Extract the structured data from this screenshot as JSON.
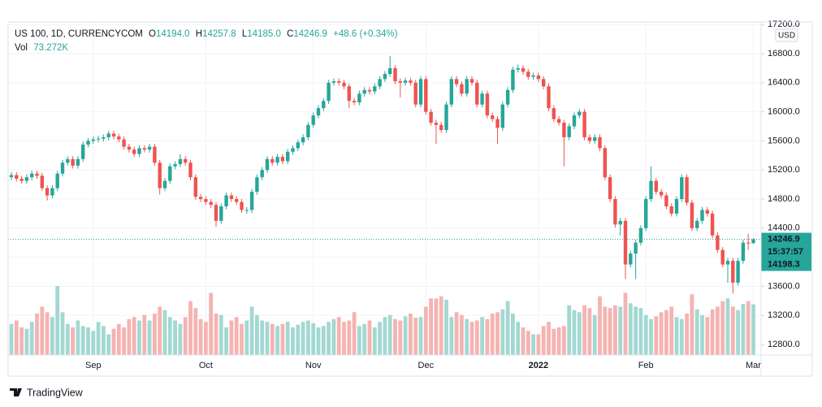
{
  "chart_data": {
    "type": "candlestick",
    "legend": {
      "symbol": "US 100, 1D, CURRENCYCOM",
      "open_key": "O",
      "open": "14194.0",
      "high_key": "H",
      "high": "14257.8",
      "low_key": "L",
      "low": "14185.0",
      "close_key": "C",
      "close": "14246.9",
      "change": "+48.6 (+0.34%)",
      "volume_key": "Vol",
      "volume": "73.272K"
    },
    "currency": "USD",
    "categories": [
      null,
      null,
      null,
      null,
      null,
      null,
      null,
      null,
      null,
      null,
      null,
      null,
      null,
      null,
      null,
      null,
      "Sep",
      null,
      null,
      null,
      null,
      null,
      null,
      null,
      null,
      null,
      null,
      null,
      null,
      null,
      null,
      null,
      null,
      null,
      null,
      null,
      null,
      null,
      "Oct",
      null,
      null,
      null,
      null,
      null,
      null,
      null,
      null,
      null,
      null,
      null,
      null,
      null,
      null,
      null,
      null,
      null,
      null,
      null,
      null,
      "Nov",
      null,
      null,
      null,
      null,
      null,
      null,
      null,
      null,
      null,
      null,
      null,
      null,
      null,
      null,
      null,
      null,
      null,
      null,
      null,
      null,
      null,
      "Dec",
      null,
      null,
      null,
      null,
      null,
      null,
      null,
      null,
      null,
      null,
      null,
      null,
      null,
      null,
      null,
      null,
      null,
      null,
      null,
      null,
      null,
      "2022",
      null,
      null,
      null,
      null,
      null,
      null,
      null,
      null,
      null,
      null,
      null,
      null,
      null,
      null,
      null,
      null,
      null,
      null,
      null,
      null,
      "Feb",
      null,
      null,
      null,
      null,
      null,
      null,
      null,
      null,
      null,
      null,
      null,
      null,
      null,
      null,
      null,
      null,
      null,
      null,
      null,
      null,
      "Mar"
    ],
    "open": [
      15100,
      15130,
      15080,
      15050,
      15100,
      15150,
      15120,
      14950,
      14850,
      14950,
      15150,
      15300,
      15350,
      15260,
      15350,
      15550,
      15600,
      15620,
      15630,
      15650,
      15700,
      15660,
      15620,
      15520,
      15480,
      15420,
      15500,
      15480,
      15520,
      15300,
      14950,
      15050,
      15250,
      15280,
      15350,
      15300,
      15100,
      14830,
      14800,
      14760,
      14720,
      14500,
      14700,
      14850,
      14800,
      14760,
      14650,
      14650,
      14900,
      15100,
      15200,
      15350,
      15300,
      15380,
      15320,
      15450,
      15500,
      15580,
      15650,
      15820,
      15950,
      16050,
      16150,
      16400,
      16420,
      16400,
      16350,
      16150,
      16130,
      16250,
      16300,
      16280,
      16350,
      16450,
      16520,
      16600,
      16420,
      16400,
      16430,
      16400,
      16100,
      16450,
      16000,
      15850,
      15820,
      15750,
      16100,
      16450,
      16380,
      16250,
      16450,
      16400,
      16100,
      16250,
      15950,
      15900,
      15780,
      16100,
      16300,
      16580,
      16600,
      16550,
      16480,
      16500,
      16450,
      16350,
      16050,
      15900,
      15850,
      15650,
      15800,
      15950,
      16000,
      15650,
      15600,
      15650,
      15500,
      15100,
      14800,
      14450,
      14500,
      13900,
      14050,
      14200,
      14400,
      14800,
      15050,
      14900,
      14850,
      14700,
      14600,
      14800,
      15100,
      14750,
      14400,
      14500,
      14650,
      14600,
      14300,
      14100,
      13900,
      13950,
      13650,
      13950,
      14200,
      14194.0
    ],
    "high": [
      15170,
      15170,
      15120,
      15140,
      15190,
      15190,
      15160,
      14990,
      14990,
      15190,
      15340,
      15390,
      15390,
      15390,
      15590,
      15640,
      15660,
      15670,
      15690,
      15740,
      15740,
      15700,
      15660,
      15560,
      15520,
      15540,
      15540,
      15560,
      15560,
      15340,
      15090,
      15290,
      15320,
      15420,
      15390,
      15340,
      15140,
      14870,
      14840,
      14800,
      14760,
      14740,
      14890,
      14890,
      14840,
      14800,
      14690,
      14940,
      15140,
      15240,
      15390,
      15390,
      15420,
      15420,
      15490,
      15540,
      15620,
      15690,
      15860,
      15990,
      16090,
      16190,
      16440,
      16460,
      16460,
      16440,
      16390,
      16190,
      16290,
      16340,
      16340,
      16390,
      16490,
      16560,
      16770,
      16640,
      16460,
      16470,
      16470,
      16440,
      16490,
      16490,
      16040,
      15890,
      15860,
      16140,
      16490,
      16490,
      16420,
      16490,
      16490,
      16440,
      16290,
      16290,
      15990,
      15940,
      16140,
      16340,
      16620,
      16650,
      16640,
      16590,
      16540,
      16540,
      16490,
      16390,
      16090,
      15940,
      15890,
      15840,
      15990,
      16040,
      16040,
      15690,
      15690,
      15690,
      15540,
      15140,
      14840,
      14540,
      14540,
      14090,
      14240,
      14440,
      14840,
      15250,
      15090,
      14940,
      14890,
      14740,
      14840,
      15140,
      15140,
      14790,
      14540,
      14690,
      14690,
      14640,
      14340,
      14140,
      13990,
      13990,
      13990,
      14240,
      14320,
      14257.8
    ],
    "low": [
      15060,
      15040,
      15010,
      15010,
      15060,
      15080,
      14910,
      14780,
      14810,
      14910,
      15110,
      15260,
      15220,
      15220,
      15310,
      15510,
      15560,
      15580,
      15590,
      15610,
      15620,
      15580,
      15480,
      15440,
      15380,
      15380,
      15440,
      15440,
      15260,
      14860,
      14910,
      15010,
      15210,
      15240,
      15260,
      15060,
      14790,
      14760,
      14720,
      14680,
      14420,
      14460,
      14660,
      14760,
      14720,
      14610,
      14600,
      14610,
      14860,
      15060,
      15160,
      15260,
      15260,
      15280,
      15280,
      15410,
      15460,
      15540,
      15610,
      15780,
      15910,
      16010,
      16110,
      16360,
      16360,
      16310,
      16050,
      16090,
      16090,
      16210,
      16240,
      16240,
      16310,
      16410,
      16480,
      16380,
      16200,
      16360,
      16360,
      16060,
      16060,
      15960,
      15810,
      15560,
      15710,
      15710,
      16060,
      16340,
      16210,
      16210,
      16360,
      16060,
      16060,
      15910,
      15860,
      15560,
      15740,
      16060,
      16260,
      16540,
      16510,
      16440,
      16440,
      16410,
      16310,
      16010,
      15860,
      15810,
      15250,
      15610,
      15760,
      15910,
      15610,
      15560,
      15560,
      15460,
      15060,
      14760,
      14410,
      14300,
      13700,
      13860,
      13700,
      14160,
      14360,
      14760,
      14860,
      14810,
      14660,
      14560,
      14560,
      14760,
      14710,
      14360,
      14360,
      14460,
      14560,
      14260,
      14060,
      13860,
      13650,
      13500,
      13610,
      13910,
      14100,
      14185.0
    ],
    "close": [
      15130,
      15080,
      15050,
      15100,
      15150,
      15120,
      14950,
      14850,
      14950,
      15150,
      15300,
      15350,
      15260,
      15350,
      15550,
      15600,
      15620,
      15630,
      15650,
      15700,
      15660,
      15620,
      15520,
      15480,
      15420,
      15500,
      15480,
      15520,
      15300,
      14950,
      15050,
      15250,
      15280,
      15350,
      15300,
      15100,
      14830,
      14800,
      14760,
      14720,
      14500,
      14700,
      14850,
      14800,
      14760,
      14650,
      14650,
      14900,
      15100,
      15200,
      15350,
      15300,
      15380,
      15320,
      15450,
      15500,
      15580,
      15650,
      15820,
      15950,
      16050,
      16150,
      16400,
      16420,
      16400,
      16350,
      16150,
      16130,
      16250,
      16300,
      16280,
      16350,
      16450,
      16520,
      16600,
      16420,
      16400,
      16430,
      16400,
      16100,
      16450,
      16000,
      15850,
      15820,
      15750,
      16100,
      16450,
      16380,
      16250,
      16450,
      16400,
      16100,
      16250,
      15950,
      15900,
      15780,
      16100,
      16300,
      16580,
      16600,
      16550,
      16480,
      16500,
      16450,
      16350,
      16050,
      15900,
      15850,
      15650,
      15800,
      15950,
      16000,
      15650,
      15600,
      15650,
      15500,
      15100,
      14800,
      14450,
      14500,
      13900,
      14050,
      14200,
      14400,
      14800,
      15050,
      14900,
      14850,
      14700,
      14600,
      14800,
      15100,
      14750,
      14400,
      14500,
      14650,
      14600,
      14300,
      14100,
      13900,
      13950,
      13650,
      13950,
      14200,
      14198.3,
      14246.9
    ],
    "volume": [
      45,
      50,
      40,
      38,
      48,
      60,
      70,
      62,
      55,
      100,
      62,
      45,
      40,
      50,
      42,
      40,
      35,
      48,
      42,
      30,
      38,
      45,
      40,
      52,
      55,
      50,
      58,
      50,
      60,
      70,
      65,
      55,
      50,
      45,
      55,
      78,
      68,
      52,
      48,
      90,
      60,
      58,
      40,
      50,
      55,
      45,
      50,
      70,
      58,
      50,
      48,
      45,
      42,
      45,
      48,
      40,
      44,
      48,
      50,
      46,
      40,
      42,
      48,
      52,
      55,
      48,
      50,
      62,
      42,
      45,
      50,
      40,
      48,
      55,
      58,
      52,
      50,
      56,
      60,
      54,
      55,
      70,
      82,
      82,
      85,
      80,
      55,
      62,
      58,
      52,
      48,
      50,
      55,
      52,
      60,
      62,
      66,
      78,
      60,
      48,
      40,
      35,
      30,
      30,
      42,
      48,
      38,
      40,
      42,
      72,
      65,
      62,
      72,
      68,
      58,
      85,
      70,
      68,
      72,
      70,
      90,
      75,
      70,
      68,
      58,
      52,
      56,
      62,
      65,
      70,
      55,
      52,
      60,
      88,
      66,
      58,
      55,
      66,
      70,
      78,
      82,
      70,
      65,
      74,
      78,
      73.272
    ],
    "up_color": "#26a69a",
    "down_color": "#ef5350",
    "volume_up_color": "#a3d8d2",
    "volume_down_color": "#f5b3b1",
    "ylim": [
      12655,
      17236
    ],
    "yticks": [
      {
        "value": 12800,
        "label": "12800.0"
      },
      {
        "value": 13200,
        "label": "13200.0"
      },
      {
        "value": 13600,
        "label": "13600.0"
      },
      {
        "value": 14000,
        "label": "14000.0"
      },
      {
        "value": 14400,
        "label": "14400.0"
      },
      {
        "value": 14800,
        "label": "14800.0"
      },
      {
        "value": 15200,
        "label": "15200.0"
      },
      {
        "value": 15600,
        "label": "15600.0"
      },
      {
        "value": 16000,
        "label": "16000.0"
      },
      {
        "value": 16400,
        "label": "16400.0"
      },
      {
        "value": 16800,
        "label": "16800.0"
      },
      {
        "value": 17200,
        "label": "17200.0"
      }
    ],
    "grid": true,
    "last_price": {
      "value": 14246.9,
      "label": "14246.9"
    },
    "countdown": "15:37:57",
    "previous_close": {
      "value": 14198.3,
      "label": "14198.3"
    }
  },
  "footer": {
    "brand": "TradingView"
  }
}
